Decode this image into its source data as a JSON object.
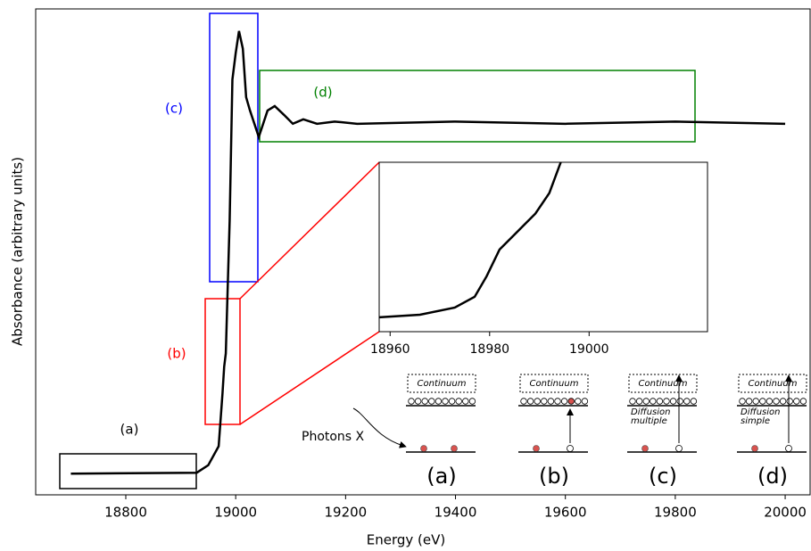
{
  "chart_data": [
    {
      "type": "line",
      "x_label": "Energy (eV)",
      "y_label": "Absorbance (arbitrary units)",
      "x": [
        18700,
        18929,
        18950,
        18969,
        18976,
        18979,
        18982,
        18985,
        18989,
        18994,
        19000,
        19006,
        19013,
        19019,
        19026,
        19042,
        19058,
        19071,
        19088,
        19104,
        19123,
        19148,
        19180,
        19221,
        19400,
        19600,
        19800,
        20000
      ],
      "series": [
        {
          "color": "#000000",
          "values": [
            0.048,
            0.05,
            0.067,
            0.11,
            0.23,
            0.29,
            0.32,
            0.45,
            0.62,
            0.94,
            1.0,
            1.05,
            1.01,
            0.9,
            0.87,
            0.81,
            0.87,
            0.88,
            0.86,
            0.84,
            0.85,
            0.84,
            0.845,
            0.84,
            0.845,
            0.84,
            0.845,
            0.84
          ]
        }
      ],
      "xlim": [
        18636,
        20047
      ],
      "ylim": [
        0,
        1.1
      ],
      "xticks": [
        18800,
        19000,
        19200,
        19400,
        19600,
        19800,
        20000
      ],
      "regions": [
        {
          "label": "(a)",
          "color": "#000000"
        },
        {
          "label": "(b)",
          "color": "#ff0000"
        },
        {
          "label": "(c)",
          "color": "#0000ff"
        },
        {
          "label": "(d)",
          "color": "#008000"
        }
      ],
      "photons": "Photons X",
      "diagrams": [
        {
          "label": "(a)",
          "continuum": "Continuum"
        },
        {
          "label": "(b)",
          "continuum": "Continuum"
        },
        {
          "label": "(c)",
          "continuum": "Continuum",
          "note": [
            "Diffusion",
            "multiple"
          ]
        },
        {
          "label": "(d)",
          "continuum": "Continuum",
          "note": [
            "Diffusion",
            "simple"
          ]
        }
      ]
    },
    {
      "type": "line",
      "x": [
        18957.8,
        18966,
        18973,
        18977,
        18979.4,
        18982,
        18985.6,
        18989.2,
        18992,
        18994.3
      ],
      "series": [
        {
          "color": "#000000",
          "values": [
            0.048,
            0.053,
            0.067,
            0.088,
            0.128,
            0.18,
            0.215,
            0.25,
            0.29,
            0.35
          ]
        }
      ],
      "xlim": [
        18957.8,
        19023.8
      ],
      "ylim": [
        0.02,
        0.35
      ],
      "xticks": [
        18960,
        18980,
        19000
      ]
    }
  ]
}
